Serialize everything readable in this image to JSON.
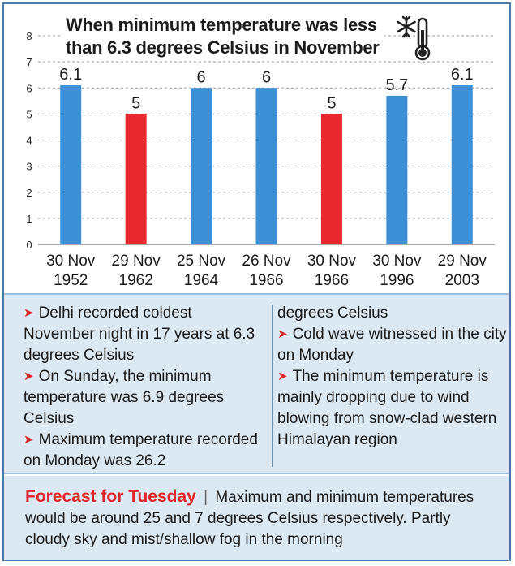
{
  "chart_data": {
    "type": "bar",
    "title": "When minimum temperature was less than 6.3 degrees Celsius in November",
    "title_lines": [
      "When minimum temperature was less",
      "than 6.3 degrees Celsius in November"
    ],
    "categories": [
      [
        "30 Nov",
        "1952"
      ],
      [
        "29 Nov",
        "1962"
      ],
      [
        "25 Nov",
        "1964"
      ],
      [
        "26 Nov",
        "1966"
      ],
      [
        "30 Nov",
        "1966"
      ],
      [
        "30 Nov",
        "1996"
      ],
      [
        "29 Nov",
        "2003"
      ]
    ],
    "values": [
      6.1,
      5,
      6,
      6,
      5,
      5.7,
      6.1
    ],
    "value_labels": [
      "6.1",
      "5",
      "6",
      "6",
      "5",
      "5.7",
      "6.1"
    ],
    "highlighted": [
      false,
      true,
      false,
      false,
      true,
      false,
      false
    ],
    "colors": {
      "normal": "#3d8fd6",
      "highlight": "#e8282e",
      "grid": "#9a9a9a"
    },
    "ylim": [
      0,
      8
    ],
    "yticks": [
      "0",
      "1",
      "2",
      "3",
      "4",
      "5",
      "6",
      "7",
      "8"
    ],
    "grid": true,
    "icon": "thermometer-snowflake-icon"
  },
  "facts": {
    "left": [
      "Delhi recorded coldest November night in 17 years at 6.3 degrees Celsius",
      "On Sunday, the minimum temperature was 6.9 degrees Celsius",
      "Maximum temperature recorded on Monday was 26.2"
    ],
    "right_continuation": "degrees Celsius",
    "right": [
      "Cold wave witnessed in the city on Monday",
      "The minimum temperature is mainly dropping due to wind blowing from snow-clad western Himalayan region"
    ],
    "bullet_icon": "arrow-right-icon"
  },
  "forecast": {
    "title": "Forecast for Tuesday",
    "separator": "|",
    "text": "Maximum and minimum temperatures would be around 25 and 7 degrees Celsius respectively. Partly cloudy sky and mist/shallow fog in the morning"
  }
}
